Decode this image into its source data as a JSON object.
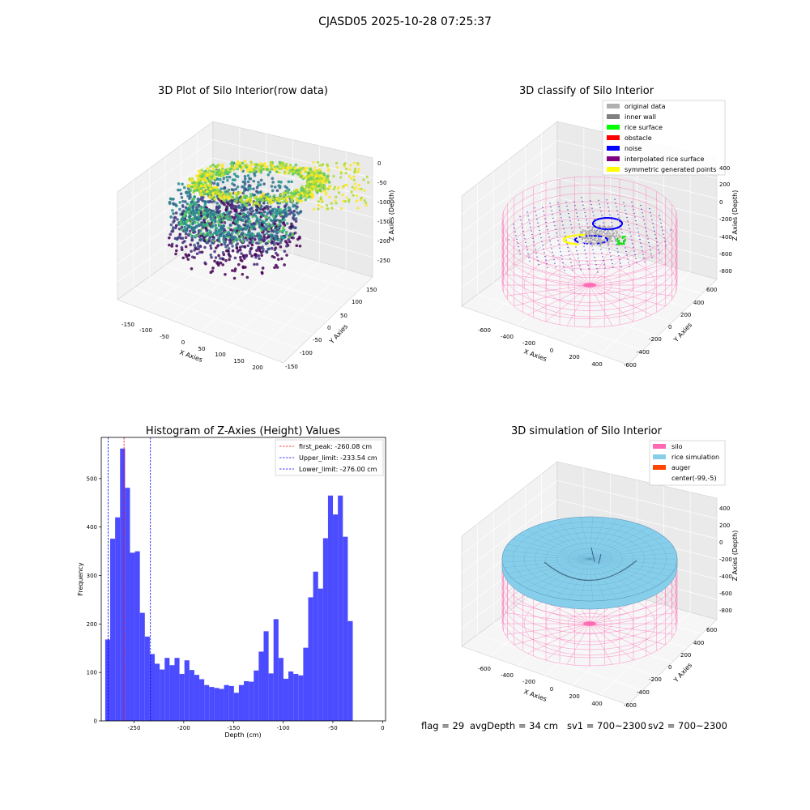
{
  "figure": {
    "suptitle": "CJASD05 2025-10-28 07:25:37"
  },
  "panels": {
    "raw": {
      "title": "3D Plot of Silo Interior(row data)",
      "xlabel": "X Axies",
      "ylabel": "Y Axies",
      "zlabel": "Z Axies (Depth)",
      "x_ticks": [
        "-150",
        "-100",
        "-50",
        "0",
        "50",
        "100",
        "150",
        "200"
      ],
      "y_ticks": [
        "150",
        "100",
        "50",
        "0",
        "-50",
        "-100",
        "-150"
      ],
      "z_ticks": [
        "0",
        "-50",
        "-100",
        "-150",
        "-200",
        "-250"
      ]
    },
    "classify": {
      "title": "3D classify of Silo Interior",
      "xlabel": "X Axies",
      "ylabel": "Y Axies",
      "zlabel": "Z Axies (Depth)",
      "x_ticks": [
        "-600",
        "-400",
        "-200",
        "0",
        "200",
        "400"
      ],
      "y_ticks": [
        "600",
        "400",
        "200",
        "0",
        "-200",
        "-400",
        "-600"
      ],
      "z_ticks": [
        "400",
        "200",
        "0",
        "-200",
        "-400",
        "-600",
        "-800"
      ],
      "legend": [
        {
          "label": "original data",
          "color": "#b0b0b0"
        },
        {
          "label": "inner wall",
          "color": "#808080"
        },
        {
          "label": "rice surface",
          "color": "#00ff00"
        },
        {
          "label": "obstacle",
          "color": "#ff0000"
        },
        {
          "label": "noise",
          "color": "#0000ff"
        },
        {
          "label": "interpolated rice surface",
          "color": "#800080"
        },
        {
          "label": "symmetric generated points",
          "color": "#ffff00"
        }
      ]
    },
    "simulation": {
      "title": "3D simulation of Silo Interior",
      "xlabel": "X Axies",
      "ylabel": "Y Axies",
      "zlabel": "Z Axies (Depth)",
      "x_ticks": [
        "-600",
        "-400",
        "-200",
        "0",
        "200",
        "400"
      ],
      "y_ticks": [
        "600",
        "400",
        "200",
        "0",
        "-200",
        "-400",
        "-600"
      ],
      "z_ticks": [
        "400",
        "200",
        "0",
        "-200",
        "-400",
        "-600",
        "-800"
      ],
      "legend": [
        {
          "label": "silo",
          "color": "#ff69b4"
        },
        {
          "label": "rice simulation",
          "color": "#87ceeb"
        },
        {
          "label": "auger",
          "color": "#ff4500"
        },
        {
          "label": "center(-99,-5)",
          "color": "#ffffff"
        }
      ]
    }
  },
  "status": {
    "flag": "flag = 29",
    "avg_depth": "avgDepth = 34 cm",
    "sv1": "sv1 = 700~2300",
    "sv2": "sv2 = 700~2300"
  },
  "colors": {
    "silo": "#ff69b4",
    "rice": "#87ceeb",
    "hist_bar": "#4b4bff",
    "peak_line": "#ff0000",
    "limit_line": "#0000ff"
  },
  "chart_data": {
    "type": "bar",
    "title": "Histogram of Z-Axies (Height) Values",
    "xlabel": "Depth (cm)",
    "ylabel": "Frequency",
    "xlim": [
      -283,
      3
    ],
    "ylim": [
      0,
      585
    ],
    "x_ticks": [
      -250,
      -200,
      -150,
      -100,
      -50,
      0
    ],
    "y_ticks": [
      0,
      100,
      200,
      300,
      400,
      500
    ],
    "bin_start": -279,
    "bin_width": 4.98,
    "values": [
      168,
      376,
      420,
      562,
      481,
      347,
      350,
      223,
      174,
      138,
      118,
      106,
      130,
      115,
      130,
      97,
      125,
      105,
      95,
      86,
      74,
      70,
      68,
      66,
      74,
      72,
      58,
      74,
      82,
      81,
      104,
      143,
      185,
      98,
      210,
      130,
      87,
      102,
      97,
      94,
      151,
      255,
      308,
      273,
      377,
      465,
      426,
      465,
      380,
      206
    ],
    "vlines": [
      {
        "label": "first_peak: -260.08 cm",
        "x": -260.08,
        "color": "#ff0000"
      },
      {
        "label": "Upper_limit: -233.54 cm",
        "x": -233.54,
        "color": "#0000ff"
      },
      {
        "label": "Lower_limit: -276.00 cm",
        "x": -276.0,
        "color": "#0000ff"
      }
    ],
    "legend_position": "top-right",
    "grid": false
  }
}
